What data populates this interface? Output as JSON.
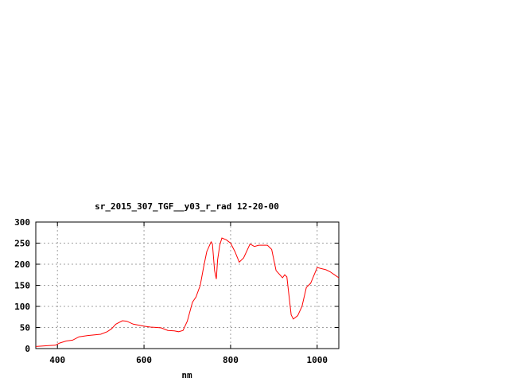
{
  "chart_data": {
    "type": "line",
    "title": "sr_2015_307_TGF__y03_r_rad 12-20-00",
    "xlabel": "nm",
    "ylabel": "",
    "xlim": [
      350,
      1050
    ],
    "ylim": [
      0,
      300
    ],
    "xticks": [
      400,
      600,
      800,
      1000
    ],
    "yticks": [
      0,
      50,
      100,
      150,
      200,
      250,
      300
    ],
    "grid": true,
    "line_color": "#ff0000",
    "series": [
      {
        "x": [
          350,
          380,
          395,
          405,
          420,
          435,
          450,
          470,
          500,
          515,
          525,
          535,
          550,
          560,
          575,
          600,
          615,
          630,
          640,
          655,
          670,
          680,
          690,
          700,
          712,
          720,
          730,
          738,
          745,
          755,
          758,
          763,
          767,
          770,
          775,
          780,
          790,
          800,
          810,
          820,
          830,
          845,
          855,
          865,
          875,
          885,
          895,
          905,
          920,
          925,
          930,
          940,
          945,
          955,
          965,
          975,
          985,
          1000,
          1020,
          1030,
          1040,
          1050
        ],
        "y": [
          5,
          7,
          8,
          13,
          18,
          20,
          28,
          31,
          34,
          40,
          47,
          58,
          66,
          65,
          58,
          53,
          51,
          50,
          49,
          43,
          42,
          40,
          43,
          65,
          110,
          122,
          150,
          195,
          230,
          253,
          248,
          185,
          165,
          210,
          245,
          262,
          258,
          250,
          230,
          205,
          215,
          248,
          242,
          245,
          245,
          245,
          235,
          185,
          168,
          175,
          170,
          80,
          70,
          78,
          100,
          145,
          155,
          192,
          187,
          182,
          175,
          168
        ]
      }
    ]
  }
}
